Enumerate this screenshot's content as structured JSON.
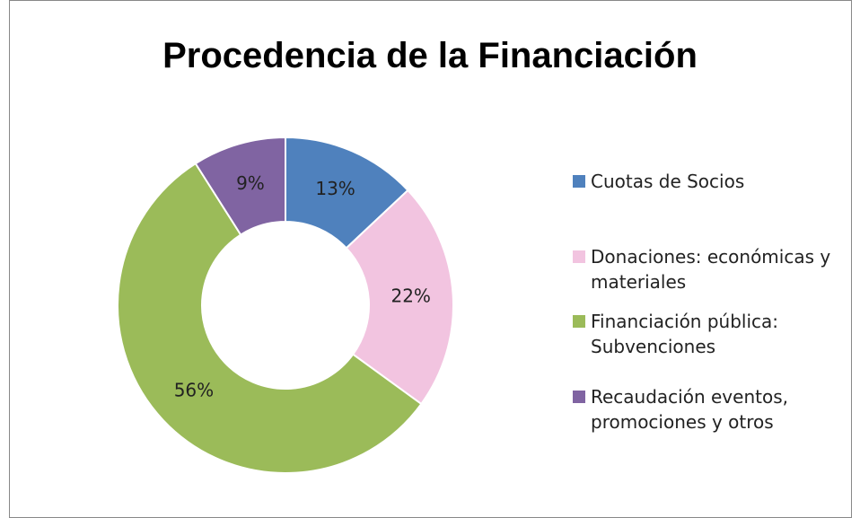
{
  "chart_data": {
    "type": "donut",
    "title": "Procedencia de la Financiación",
    "categories": [
      "Cuotas de Socios",
      "Donaciones: económicas y materiales",
      "Financiación pública: Subvenciones",
      "Recaudación eventos, promociones y otros"
    ],
    "values": [
      13,
      22,
      56,
      9
    ],
    "value_labels": [
      "13%",
      "22%",
      "56%",
      "9%"
    ],
    "colors": [
      "#4f81bd",
      "#f2c4e0",
      "#9bbb59",
      "#8064a2"
    ],
    "legend": "right"
  }
}
